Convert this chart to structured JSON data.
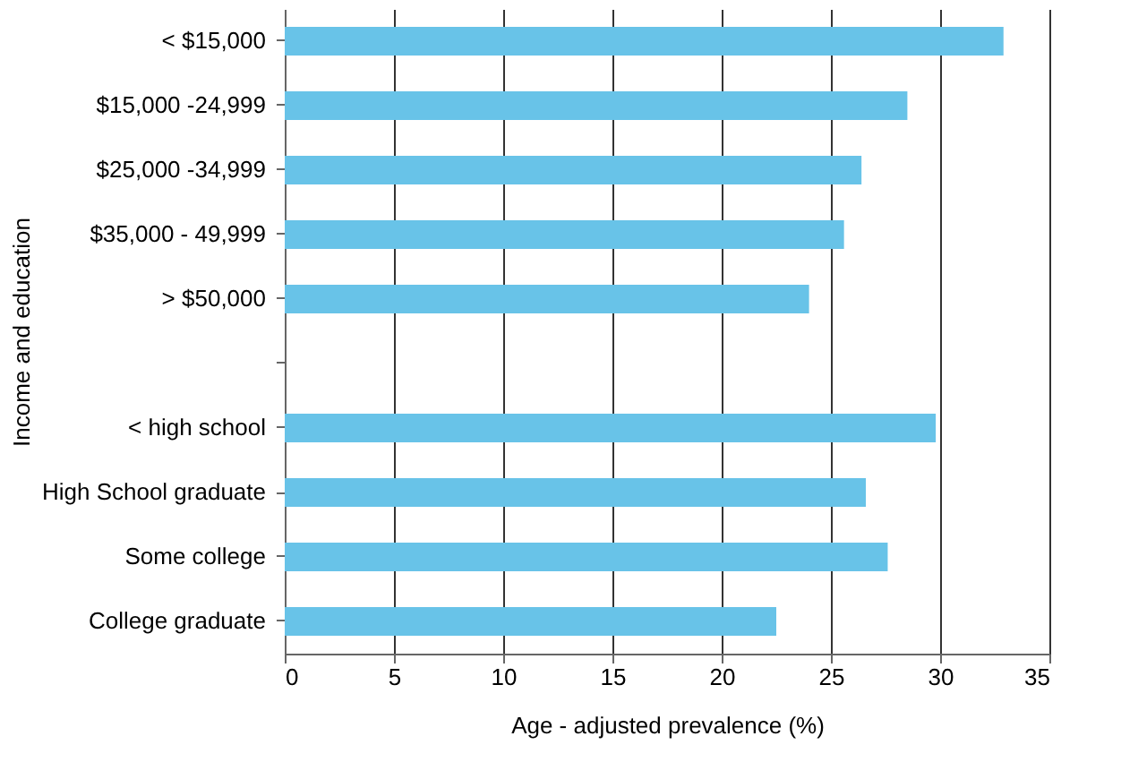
{
  "chart_data": {
    "type": "bar",
    "orientation": "horizontal",
    "xlabel": "Age - adjusted prevalence (%)",
    "ylabel": "Income and education",
    "categories": [
      "< $15,000",
      "$15,000  -24,999",
      "$25,000 -34,999",
      "$35,000 - 49,999",
      "> $50,000",
      null,
      "< high school",
      "High School graduate",
      "Some college",
      "College graduate"
    ],
    "values": [
      32.9,
      28.5,
      26.4,
      25.6,
      24.0,
      null,
      29.8,
      26.6,
      27.6,
      22.5
    ],
    "color": "#68c3e8",
    "xlim": [
      0,
      35
    ],
    "xticks": [
      0,
      5,
      10,
      15,
      20,
      25,
      30,
      35
    ],
    "grid": "x"
  }
}
